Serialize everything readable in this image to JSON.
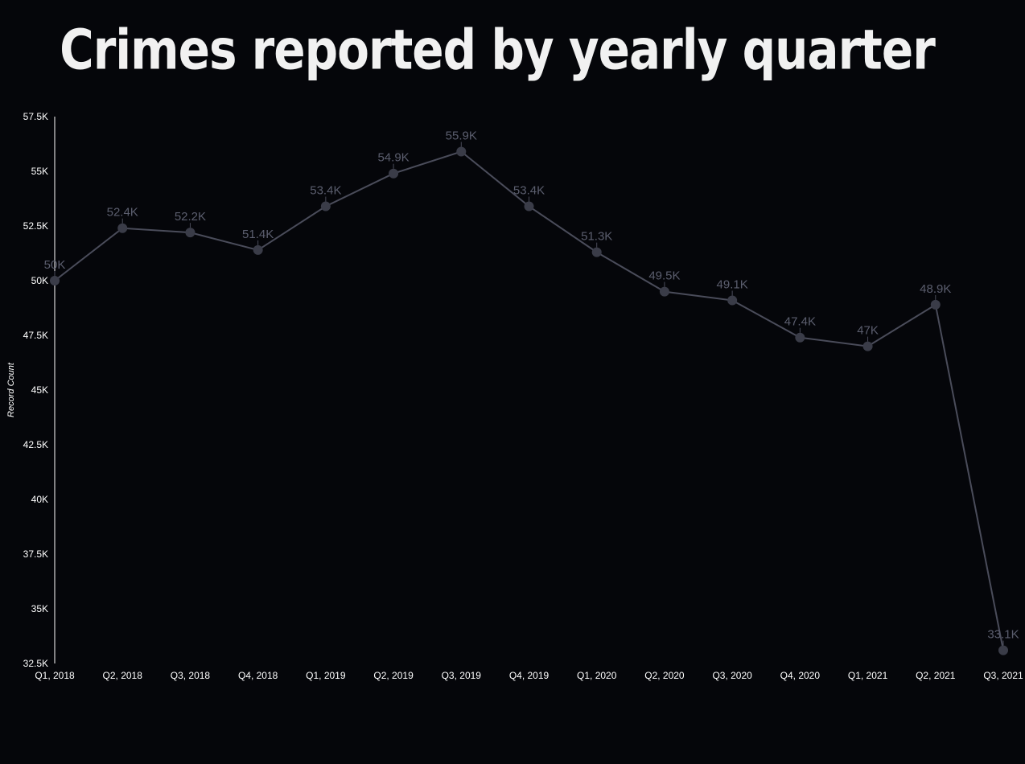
{
  "chart_data": {
    "type": "line",
    "title": "Crimes reported by yearly quarter",
    "xlabel": "",
    "ylabel": "Record Count",
    "ylim": [
      32500,
      57500
    ],
    "yticks": [
      {
        "value": 32500,
        "label": "32.5K"
      },
      {
        "value": 35000,
        "label": "35K"
      },
      {
        "value": 37500,
        "label": "37.5K"
      },
      {
        "value": 40000,
        "label": "40K"
      },
      {
        "value": 42500,
        "label": "42.5K"
      },
      {
        "value": 45000,
        "label": "45K"
      },
      {
        "value": 47500,
        "label": "47.5K"
      },
      {
        "value": 50000,
        "label": "50K"
      },
      {
        "value": 52500,
        "label": "52.5K"
      },
      {
        "value": 55000,
        "label": "55K"
      },
      {
        "value": 57500,
        "label": "57.5K"
      }
    ],
    "categories": [
      "Q1, 2018",
      "Q2, 2018",
      "Q3, 2018",
      "Q4, 2018",
      "Q1, 2019",
      "Q2, 2019",
      "Q3, 2019",
      "Q4, 2019",
      "Q1, 2020",
      "Q2, 2020",
      "Q3, 2020",
      "Q4, 2020",
      "Q1, 2021",
      "Q2, 2021",
      "Q3, 2021"
    ],
    "series": [
      {
        "values": [
          50000,
          52400,
          52200,
          51400,
          53400,
          54900,
          55900,
          53400,
          51300,
          49500,
          49100,
          47400,
          47000,
          48900,
          33100
        ],
        "labels": [
          "50K",
          "52.4K",
          "52.2K",
          "51.4K",
          "53.4K",
          "54.9K",
          "55.9K",
          "53.4K",
          "51.3K",
          "49.5K",
          "49.1K",
          "47.4K",
          "47K",
          "48.9K",
          "33.1K"
        ]
      }
    ],
    "grid": false,
    "legend": "none",
    "colors": {
      "background": "#05060a",
      "line": "#4a4c5a",
      "marker": "#3a3c48",
      "data_label": "#5b5e6e",
      "axis": "#ffffff",
      "title": "#f1f1f1"
    }
  }
}
